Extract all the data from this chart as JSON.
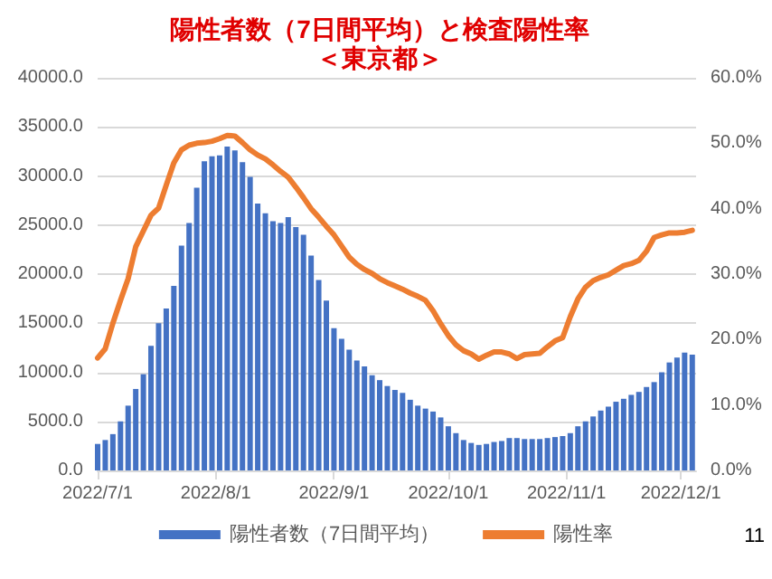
{
  "chart_data": {
    "type": "bar",
    "title": "陽性者数（7日間平均）と検査陽性率",
    "subtitle": "＜東京都＞",
    "annotations": [
      "11"
    ],
    "x": [
      "2022-07-01",
      "2022-07-03",
      "2022-07-05",
      "2022-07-07",
      "2022-07-09",
      "2022-07-11",
      "2022-07-13",
      "2022-07-15",
      "2022-07-17",
      "2022-07-19",
      "2022-07-21",
      "2022-07-23",
      "2022-07-25",
      "2022-07-27",
      "2022-07-29",
      "2022-07-31",
      "2022-08-02",
      "2022-08-04",
      "2022-08-06",
      "2022-08-08",
      "2022-08-10",
      "2022-08-12",
      "2022-08-14",
      "2022-08-16",
      "2022-08-18",
      "2022-08-20",
      "2022-08-22",
      "2022-08-24",
      "2022-08-26",
      "2022-08-28",
      "2022-08-30",
      "2022-09-01",
      "2022-09-03",
      "2022-09-05",
      "2022-09-07",
      "2022-09-09",
      "2022-09-11",
      "2022-09-13",
      "2022-09-15",
      "2022-09-17",
      "2022-09-19",
      "2022-09-21",
      "2022-09-23",
      "2022-09-25",
      "2022-09-27",
      "2022-09-29",
      "2022-10-01",
      "2022-10-03",
      "2022-10-05",
      "2022-10-07",
      "2022-10-09",
      "2022-10-11",
      "2022-10-13",
      "2022-10-15",
      "2022-10-17",
      "2022-10-19",
      "2022-10-21",
      "2022-10-23",
      "2022-10-25",
      "2022-10-27",
      "2022-10-29",
      "2022-10-31",
      "2022-11-02",
      "2022-11-04",
      "2022-11-06",
      "2022-11-08",
      "2022-11-10",
      "2022-11-12",
      "2022-11-14",
      "2022-11-16",
      "2022-11-18",
      "2022-11-20",
      "2022-11-22",
      "2022-11-24",
      "2022-11-26",
      "2022-11-28",
      "2022-11-30",
      "2022-12-02",
      "2022-12-04"
    ],
    "series": [
      {
        "name": "陽性者数（7日間平均）",
        "color": "#4472c4",
        "values": [
          2700,
          3100,
          3700,
          5000,
          6600,
          8300,
          9800,
          12700,
          15000,
          16500,
          18800,
          22900,
          25200,
          28800,
          31500,
          32000,
          32100,
          33000,
          32600,
          31400,
          29900,
          27200,
          26200,
          25400,
          25200,
          25800,
          24800,
          24000,
          21900,
          19400,
          17300,
          14500,
          13400,
          12300,
          11200,
          10600,
          9700,
          9200,
          8600,
          8200,
          7900,
          7200,
          6600,
          6300,
          6000,
          5400,
          4500,
          3800,
          3100,
          2800,
          2600,
          2700,
          2900,
          3000,
          3300,
          3300,
          3200,
          3200,
          3200,
          3300,
          3400,
          3500,
          3800,
          4500,
          5000,
          5500,
          6100,
          6500,
          7000,
          7300,
          7700,
          8000,
          8500,
          9000,
          10000,
          11000,
          11500,
          12000,
          11800
        ]
      },
      {
        "name": "陽性率",
        "type": "line",
        "axis": "y2",
        "color": "#ed7d31",
        "values": [
          17.2,
          18.6,
          22.5,
          26.0,
          29.3,
          34.2,
          36.6,
          39.0,
          40.1,
          43.6,
          47.0,
          49.0,
          49.7,
          50.0,
          50.1,
          50.3,
          50.7,
          51.2,
          51.1,
          50.1,
          49.0,
          48.2,
          47.6,
          46.7,
          45.7,
          44.8,
          43.3,
          41.7,
          40.0,
          38.7,
          37.3,
          36.0,
          34.3,
          32.6,
          31.5,
          30.7,
          30.1,
          29.3,
          28.7,
          28.2,
          27.7,
          27.1,
          26.6,
          26.0,
          24.4,
          22.4,
          20.6,
          19.2,
          18.3,
          17.8,
          17.0,
          17.6,
          18.1,
          18.1,
          17.8,
          17.1,
          17.7,
          17.8,
          17.9,
          18.9,
          19.8,
          20.3,
          23.5,
          26.2,
          28.0,
          29.0,
          29.5,
          29.9,
          30.6,
          31.3,
          31.6,
          32.1,
          33.5,
          35.6,
          36.0,
          36.3,
          36.3,
          36.4,
          36.7
        ]
      }
    ],
    "xlim": [
      "2022-07-01",
      "2022-12-05"
    ],
    "xticks": [
      {
        "value": "2022-07-01",
        "label": "2022/7/1"
      },
      {
        "value": "2022-08-01",
        "label": "2022/8/1"
      },
      {
        "value": "2022-09-01",
        "label": "2022/9/1"
      },
      {
        "value": "2022-10-01",
        "label": "2022/10/1"
      },
      {
        "value": "2022-11-01",
        "label": "2022/11/1"
      },
      {
        "value": "2022-12-01",
        "label": "2022/12/1"
      }
    ],
    "ylim": [
      0,
      40000
    ],
    "yticks": [
      {
        "value": 0,
        "label": "0.0"
      },
      {
        "value": 5000,
        "label": "5000.0"
      },
      {
        "value": 10000,
        "label": "10000.0"
      },
      {
        "value": 15000,
        "label": "15000.0"
      },
      {
        "value": 20000,
        "label": "20000.0"
      },
      {
        "value": 25000,
        "label": "25000.0"
      },
      {
        "value": 30000,
        "label": "30000.0"
      },
      {
        "value": 35000,
        "label": "35000.0"
      },
      {
        "value": 40000,
        "label": "40000.0"
      }
    ],
    "y2lim": [
      0,
      60
    ],
    "y2ticks": [
      {
        "value": 0,
        "label": "0.0%"
      },
      {
        "value": 10,
        "label": "10.0%"
      },
      {
        "value": 20,
        "label": "20.0%"
      },
      {
        "value": 30,
        "label": "30.0%"
      },
      {
        "value": 40,
        "label": "40.0%"
      },
      {
        "value": 50,
        "label": "50.0%"
      },
      {
        "value": 60,
        "label": "60.0%"
      }
    ],
    "grid": "y",
    "legend": "bottom",
    "marker": "none",
    "line_style": "solid"
  }
}
